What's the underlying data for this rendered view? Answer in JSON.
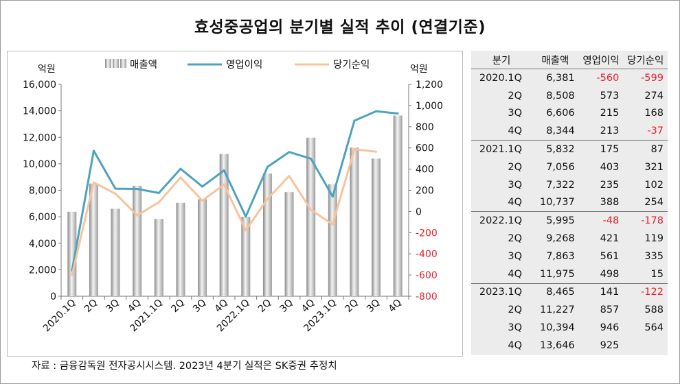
{
  "title": "효성중공업의 분기별 실적 추이 (연결기준)",
  "source": "자료 : 금융감독원 전자공시시스템. 2023년 4분기 실적은 SK증권 추정치",
  "chart_data": {
    "type": "bar+line",
    "categories": [
      "2020.1Q",
      "2Q",
      "3Q",
      "4Q",
      "2021.1Q",
      "2Q",
      "3Q",
      "4Q",
      "2022.1Q",
      "2Q",
      "3Q",
      "4Q",
      "2023.1Q",
      "2Q",
      "3Q",
      "4Q"
    ],
    "left_axis": {
      "unit": "억원",
      "ylim": [
        0,
        16000
      ],
      "ticks": [
        "0",
        "2,000",
        "4,000",
        "6,000",
        "8,000",
        "10,000",
        "12,000",
        "14,000",
        "16,000"
      ]
    },
    "right_axis": {
      "unit": "억원",
      "ylim": [
        -800,
        1200
      ],
      "ticks": [
        "-800",
        "-600",
        "-400",
        "-200",
        "0",
        "200",
        "400",
        "600",
        "800",
        "1,000",
        "1,200"
      ]
    },
    "series": [
      {
        "name": "매출액",
        "axis": "left",
        "kind": "bar",
        "color": "#bfbfbf",
        "values": [
          6381,
          8508,
          6606,
          8344,
          5832,
          7056,
          7322,
          10737,
          5995,
          9268,
          7863,
          11975,
          8465,
          11227,
          10394,
          13646
        ]
      },
      {
        "name": "영업이익",
        "axis": "right",
        "kind": "line",
        "color": "#4ba3be",
        "values": [
          -560,
          573,
          215,
          213,
          175,
          403,
          235,
          388,
          -48,
          421,
          561,
          498,
          141,
          857,
          946,
          925
        ]
      },
      {
        "name": "당기순익",
        "axis": "right",
        "kind": "line",
        "color": "#f7c39c",
        "values": [
          -599,
          274,
          168,
          -37,
          87,
          321,
          102,
          254,
          -178,
          119,
          335,
          15,
          -122,
          588,
          564,
          null
        ]
      }
    ],
    "legend_position": "top",
    "grid": false
  },
  "table": {
    "headers": [
      "분기",
      "매출액",
      "영업이익",
      "당기순익"
    ],
    "rows": [
      [
        "2020.1Q",
        "6,381",
        "-560",
        "-599"
      ],
      [
        "2Q",
        "8,508",
        "573",
        "274"
      ],
      [
        "3Q",
        "6,606",
        "215",
        "168"
      ],
      [
        "4Q",
        "8,344",
        "213",
        "-37"
      ],
      [
        "2021.1Q",
        "5,832",
        "175",
        "87"
      ],
      [
        "2Q",
        "7,056",
        "403",
        "321"
      ],
      [
        "3Q",
        "7,322",
        "235",
        "102"
      ],
      [
        "4Q",
        "10,737",
        "388",
        "254"
      ],
      [
        "2022.1Q",
        "5,995",
        "-48",
        "-178"
      ],
      [
        "2Q",
        "9,268",
        "421",
        "119"
      ],
      [
        "3Q",
        "7,863",
        "561",
        "335"
      ],
      [
        "4Q",
        "11,975",
        "498",
        "15"
      ],
      [
        "2023.1Q",
        "8,465",
        "141",
        "-122"
      ],
      [
        "2Q",
        "11,227",
        "857",
        "588"
      ],
      [
        "3Q",
        "10,394",
        "946",
        "564"
      ],
      [
        "4Q",
        "13,646",
        "925",
        ""
      ]
    ]
  }
}
